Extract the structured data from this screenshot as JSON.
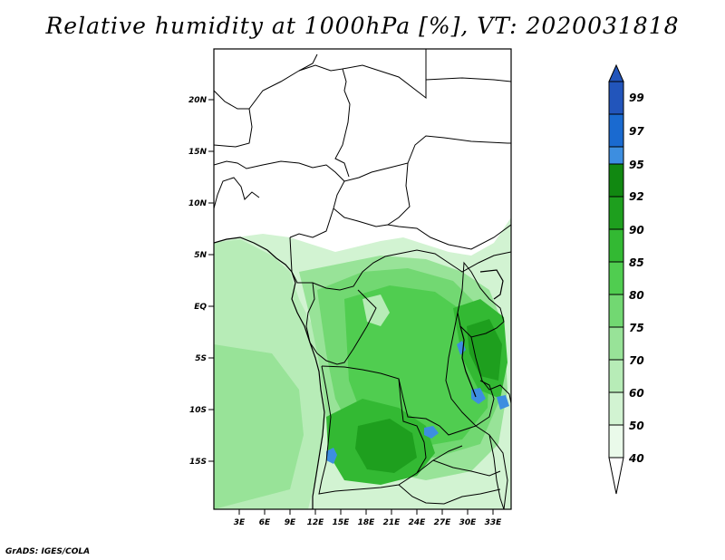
{
  "title": "Relative humidity at 1000hPa [%], VT: 2020031818",
  "credit": "GrADS: IGES/COLA",
  "axes": {
    "lat_labels": [
      "20N",
      "15N",
      "10N",
      "5N",
      "EQ",
      "5S",
      "10S",
      "15S"
    ],
    "lon_labels": [
      "3E",
      "6E",
      "9E",
      "12E",
      "15E",
      "18E",
      "21E",
      "24E",
      "27E",
      "30E",
      "33E"
    ]
  },
  "colorbar": {
    "levels": [
      "99",
      "97",
      "95",
      "92",
      "90",
      "85",
      "80",
      "75",
      "70",
      "60",
      "50",
      "40"
    ],
    "colors": [
      "#ffffff",
      "#eafaea",
      "#d2f3d2",
      "#b7ecb7",
      "#98e398",
      "#72d872",
      "#50cd50",
      "#33b933",
      "#1e9f1e",
      "#118811",
      "#3d8ee0",
      "#1a6ad0",
      "#2255bb"
    ]
  }
}
